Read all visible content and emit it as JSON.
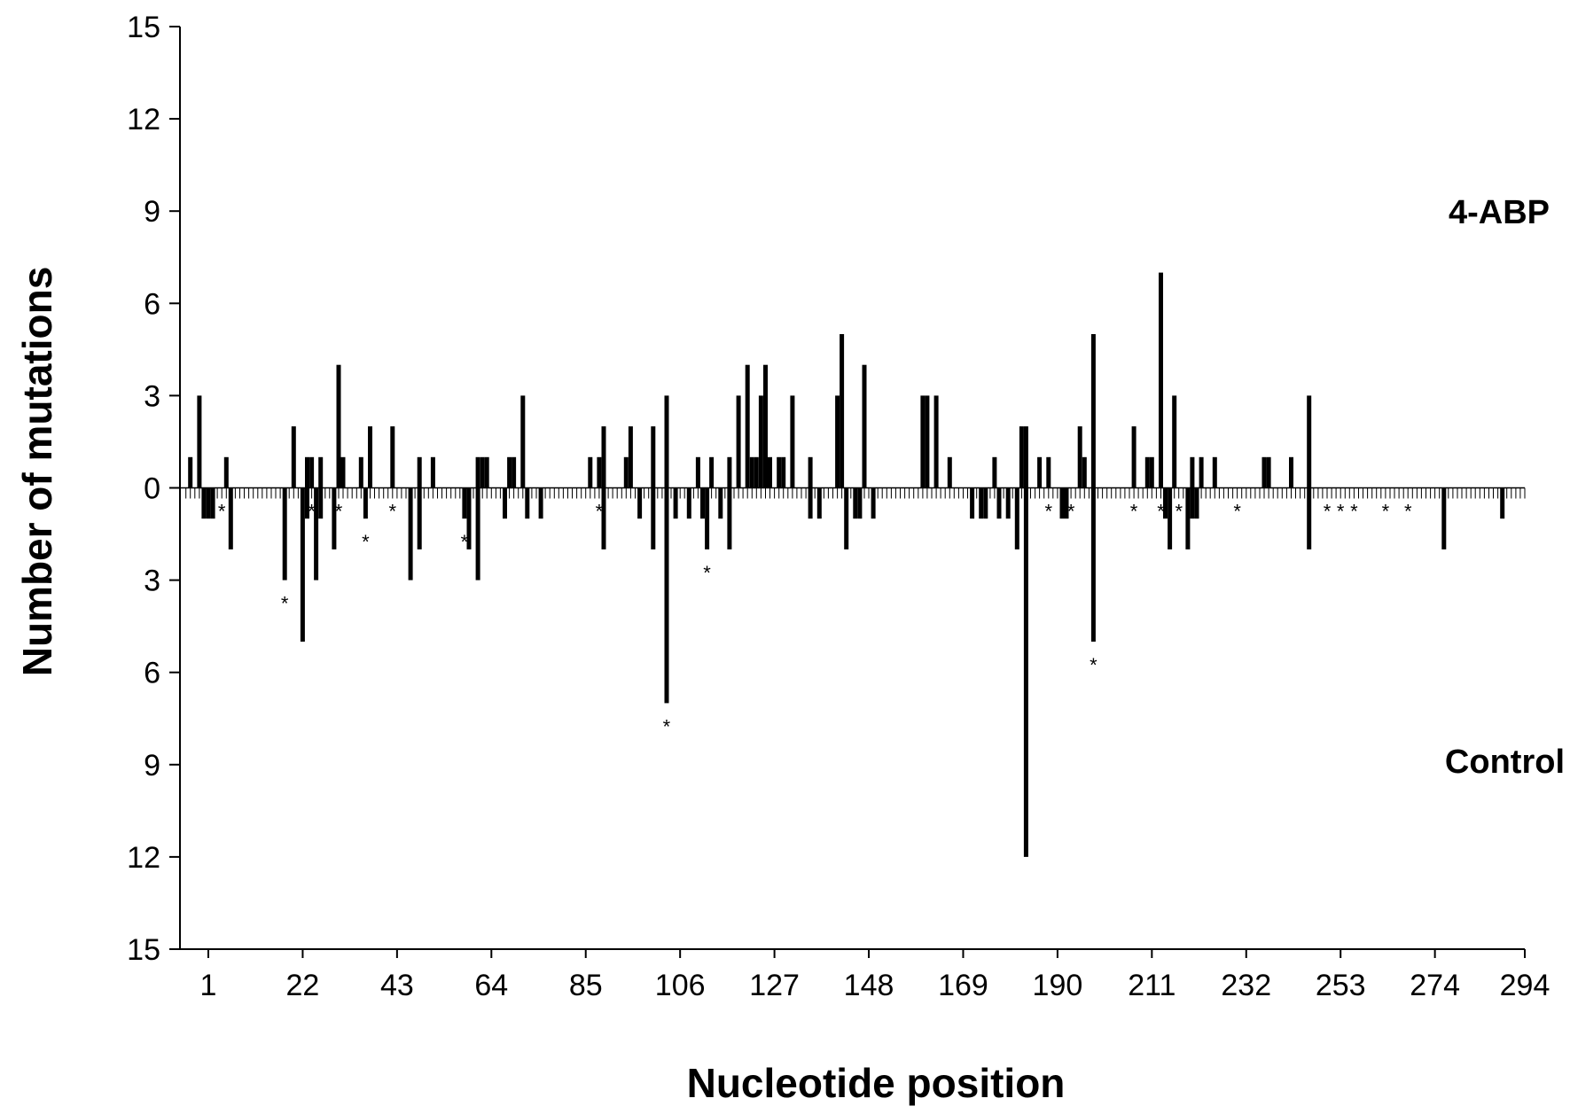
{
  "chart_data": {
    "type": "bar",
    "title": "",
    "xlabel": "Nucleotide position",
    "ylabel": "Number of mutations",
    "xlim": [
      -4,
      294
    ],
    "ylim": [
      -15,
      15
    ],
    "xticks": [
      1,
      22,
      43,
      64,
      85,
      106,
      127,
      148,
      169,
      190,
      211,
      232,
      253,
      274,
      294
    ],
    "yticks": [
      15,
      12,
      9,
      6,
      3,
      0,
      3,
      6,
      9,
      12,
      15
    ],
    "grid": false,
    "legend": "none",
    "labels": {
      "upper": "4-ABP",
      "lower": "Control"
    },
    "series": [
      {
        "name": "4-ABP",
        "direction": "up",
        "points": [
          [
            -3,
            1
          ],
          [
            -1,
            3
          ],
          [
            5,
            1
          ],
          [
            20,
            2
          ],
          [
            23,
            1
          ],
          [
            24,
            1
          ],
          [
            26,
            1
          ],
          [
            30,
            4
          ],
          [
            31,
            1
          ],
          [
            35,
            1
          ],
          [
            37,
            2
          ],
          [
            42,
            2
          ],
          [
            48,
            1
          ],
          [
            51,
            1
          ],
          [
            61,
            1
          ],
          [
            62,
            1
          ],
          [
            63,
            1
          ],
          [
            68,
            1
          ],
          [
            69,
            1
          ],
          [
            71,
            3
          ],
          [
            86,
            1
          ],
          [
            88,
            1
          ],
          [
            89,
            2
          ],
          [
            94,
            1
          ],
          [
            95,
            2
          ],
          [
            100,
            2
          ],
          [
            103,
            3
          ],
          [
            110,
            1
          ],
          [
            113,
            1
          ],
          [
            117,
            1
          ],
          [
            119,
            3
          ],
          [
            121,
            4
          ],
          [
            122,
            1
          ],
          [
            123,
            1
          ],
          [
            124,
            3
          ],
          [
            125,
            4
          ],
          [
            126,
            1
          ],
          [
            128,
            1
          ],
          [
            129,
            1
          ],
          [
            131,
            3
          ],
          [
            135,
            1
          ],
          [
            141,
            3
          ],
          [
            142,
            5
          ],
          [
            147,
            4
          ],
          [
            160,
            3
          ],
          [
            161,
            3
          ],
          [
            163,
            3
          ],
          [
            166,
            1
          ],
          [
            176,
            1
          ],
          [
            182,
            2
          ],
          [
            183,
            2
          ],
          [
            186,
            1
          ],
          [
            188,
            1
          ],
          [
            195,
            2
          ],
          [
            196,
            1
          ],
          [
            198,
            5
          ],
          [
            207,
            2
          ],
          [
            210,
            1
          ],
          [
            211,
            1
          ],
          [
            213,
            7
          ],
          [
            216,
            3
          ],
          [
            220,
            1
          ],
          [
            222,
            1
          ],
          [
            225,
            1
          ],
          [
            236,
            1
          ],
          [
            237,
            1
          ],
          [
            242,
            1
          ],
          [
            246,
            3
          ]
        ]
      },
      {
        "name": "Control",
        "direction": "down",
        "points": [
          [
            0,
            1
          ],
          [
            1,
            1
          ],
          [
            2,
            1
          ],
          [
            6,
            2
          ],
          [
            18,
            3
          ],
          [
            22,
            5
          ],
          [
            23,
            1
          ],
          [
            25,
            3
          ],
          [
            26,
            1
          ],
          [
            29,
            2
          ],
          [
            36,
            1
          ],
          [
            46,
            3
          ],
          [
            48,
            2
          ],
          [
            58,
            1
          ],
          [
            59,
            2
          ],
          [
            61,
            3
          ],
          [
            67,
            1
          ],
          [
            72,
            1
          ],
          [
            75,
            1
          ],
          [
            89,
            2
          ],
          [
            97,
            1
          ],
          [
            100,
            2
          ],
          [
            103,
            7
          ],
          [
            105,
            1
          ],
          [
            108,
            1
          ],
          [
            111,
            1
          ],
          [
            112,
            2
          ],
          [
            115,
            1
          ],
          [
            117,
            2
          ],
          [
            135,
            1
          ],
          [
            137,
            1
          ],
          [
            143,
            2
          ],
          [
            145,
            1
          ],
          [
            146,
            1
          ],
          [
            149,
            1
          ],
          [
            171,
            1
          ],
          [
            173,
            1
          ],
          [
            174,
            1
          ],
          [
            177,
            1
          ],
          [
            179,
            1
          ],
          [
            181,
            2
          ],
          [
            183,
            12
          ],
          [
            191,
            1
          ],
          [
            192,
            1
          ],
          [
            198,
            5
          ],
          [
            214,
            1
          ],
          [
            215,
            2
          ],
          [
            219,
            2
          ],
          [
            220,
            1
          ],
          [
            221,
            1
          ],
          [
            246,
            2
          ],
          [
            276,
            2
          ],
          [
            289,
            1
          ]
        ]
      }
    ],
    "annotations": {
      "marker": "*",
      "positions": [
        [
          4,
          "low"
        ],
        [
          18,
          "low"
        ],
        [
          24,
          "low"
        ],
        [
          30,
          "low"
        ],
        [
          36,
          "low"
        ],
        [
          42,
          "low"
        ],
        [
          58,
          "low"
        ],
        [
          88,
          "low"
        ],
        [
          103,
          "low"
        ],
        [
          112,
          "low"
        ],
        [
          188,
          "low"
        ],
        [
          193,
          "low"
        ],
        [
          198,
          "low"
        ],
        [
          207,
          "low"
        ],
        [
          213,
          "low"
        ],
        [
          217,
          "low"
        ],
        [
          230,
          "low"
        ],
        [
          250,
          "low"
        ],
        [
          253,
          "low"
        ],
        [
          256,
          "low"
        ],
        [
          263,
          "low"
        ],
        [
          268,
          "low"
        ]
      ]
    }
  }
}
